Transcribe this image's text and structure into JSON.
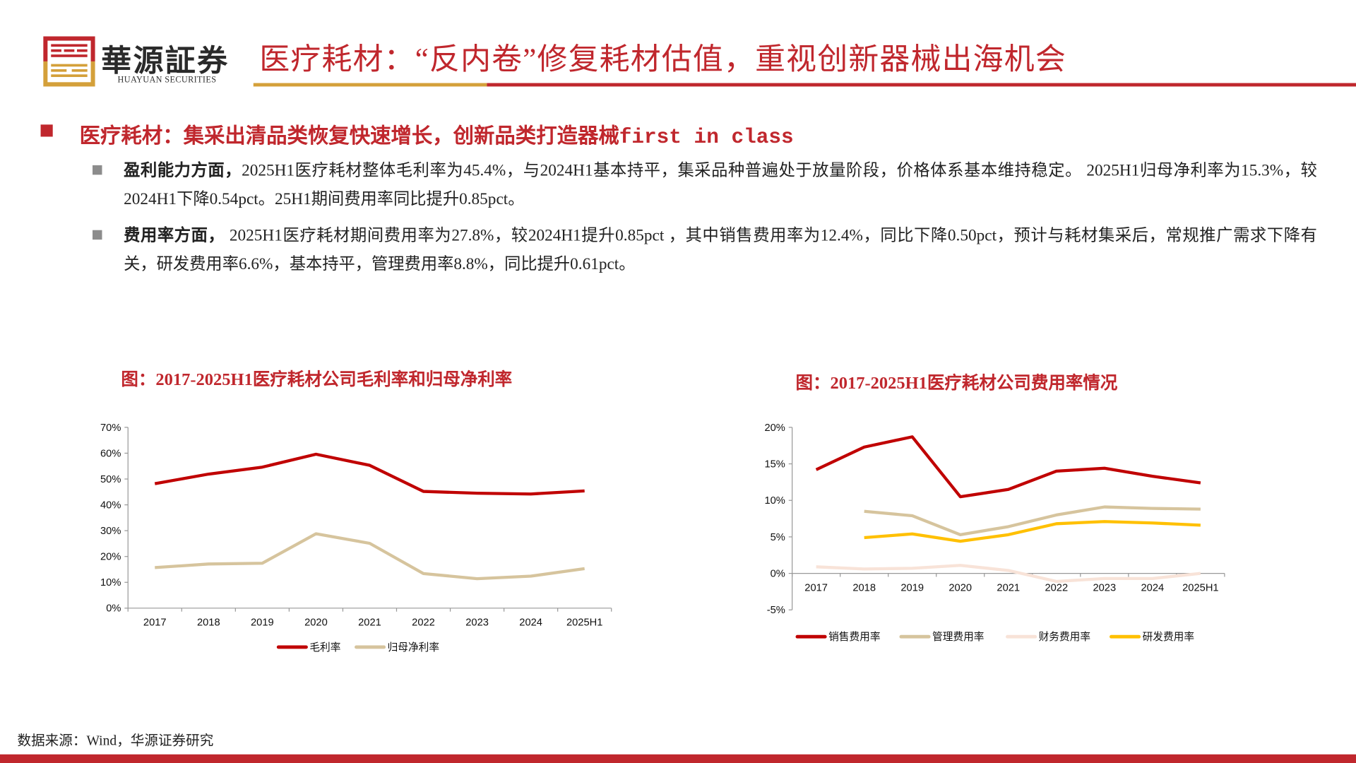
{
  "header": {
    "logo_cn": "華源証券",
    "logo_en": "HUAYUAN SECURITIES",
    "title": "医疗耗材：“反内卷”修复耗材估值，重视创新器械出海机会",
    "brand_red": "#c0272d",
    "brand_gold": "#d4a03a"
  },
  "section": {
    "heading": "医疗耗材：集采出清品类恢复快速增长，创新品类打造器械first in class",
    "bullets": [
      {
        "lead": "盈利能力方面，",
        "text": "2025H1医疗耗材整体毛利率为45.4%，与2024H1基本持平，集采品种普遍处于放量阶段，价格体系基本维持稳定。 2025H1归母净利率为15.3%，较2024H1下降0.54pct。25H1期间费用率同比提升0.85pct。"
      },
      {
        "lead": "费用率方面，",
        "text": " 2025H1医疗耗材期间费用率为27.8%，较2024H1提升0.85pct ，其中销售费用率为12.4%，同比下降0.50pct，预计与耗材集采后，常规推广需求下降有关，研发费用率6.6%，基本持平，管理费用率8.8%，同比提升0.61pct。"
      }
    ]
  },
  "chart_data": [
    {
      "type": "line",
      "title": "图：2017-2025H1医疗耗材公司毛利率和归母净利率",
      "categories": [
        "2017",
        "2018",
        "2019",
        "2020",
        "2021",
        "2022",
        "2023",
        "2024",
        "2025H1"
      ],
      "ylim": [
        0,
        70
      ],
      "yticks": [
        "0%",
        "10%",
        "20%",
        "30%",
        "40%",
        "50%",
        "60%",
        "70%"
      ],
      "grid": false,
      "legend": "bottom",
      "series": [
        {
          "name": "毛利率",
          "color": "#c00000",
          "values": [
            48.2,
            51.9,
            54.6,
            59.6,
            55.3,
            45.2,
            44.5,
            44.2,
            45.4
          ]
        },
        {
          "name": "归母净利率",
          "color": "#d6c49d",
          "values": [
            15.7,
            17.1,
            17.4,
            28.8,
            25.1,
            13.4,
            11.4,
            12.4,
            15.3
          ]
        }
      ]
    },
    {
      "type": "line",
      "title": "图：2017-2025H1医疗耗材公司费用率情况",
      "categories": [
        "2017",
        "2018",
        "2019",
        "2020",
        "2021",
        "2022",
        "2023",
        "2024",
        "2025H1"
      ],
      "ylim": [
        -5,
        20
      ],
      "yticks": [
        "-5%",
        "0%",
        "5%",
        "10%",
        "15%",
        "20%"
      ],
      "grid": false,
      "legend": "bottom",
      "series": [
        {
          "name": "销售费用率",
          "color": "#c00000",
          "values": [
            14.2,
            17.3,
            18.7,
            10.5,
            11.5,
            14.0,
            14.4,
            13.3,
            12.4
          ]
        },
        {
          "name": "管理费用率",
          "color": "#d6c49d",
          "values": [
            null,
            8.5,
            7.9,
            5.3,
            6.4,
            8.0,
            9.1,
            8.9,
            8.8
          ]
        },
        {
          "name": "财务费用率",
          "color": "#f8e3d8",
          "values": [
            0.9,
            0.6,
            0.7,
            1.1,
            0.4,
            -1.1,
            -0.7,
            -0.7,
            0.0
          ]
        },
        {
          "name": "研发费用率",
          "color": "#ffc000",
          "values": [
            null,
            4.9,
            5.4,
            4.4,
            5.3,
            6.8,
            7.1,
            6.9,
            6.6
          ]
        }
      ]
    }
  ],
  "footer": {
    "source": "数据来源：Wind，华源证券研究"
  }
}
